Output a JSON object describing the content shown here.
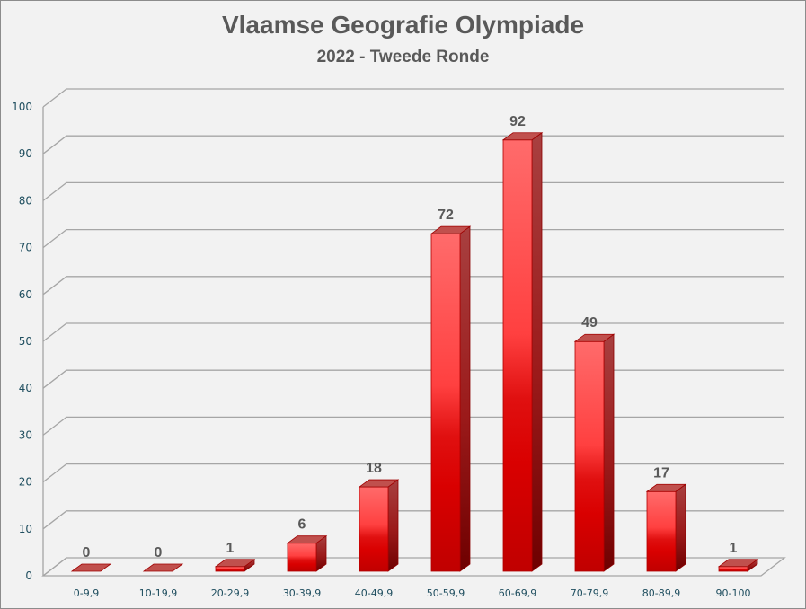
{
  "chart_data": {
    "type": "bar",
    "style": "3d-column",
    "title": "Vlaamse Geografie Olympiade",
    "subtitle": "2022 - Tweede Ronde",
    "xlabel": "",
    "ylabel": "",
    "categories": [
      "0-9,9",
      "10-19,9",
      "20-29,9",
      "30-39,9",
      "40-49,9",
      "50-59,9",
      "60-69,9",
      "70-79,9",
      "80-89,9",
      "90-100"
    ],
    "values": [
      0,
      0,
      1,
      6,
      18,
      72,
      92,
      49,
      17,
      1
    ],
    "ylim": [
      0,
      100
    ],
    "yticks": [
      0,
      10,
      20,
      30,
      40,
      50,
      60,
      70,
      80,
      90,
      100
    ],
    "grid": true,
    "legend": null,
    "data_labels": true,
    "colors": {
      "bar": "#e00000",
      "bar_light": "#ff6666",
      "bar_side": "#8b0000",
      "bar_top": "#c0504d",
      "grid": "#a6a6a6",
      "background": "#f2f2f2",
      "title": "#595959",
      "tick": "#1f4e5f"
    }
  }
}
